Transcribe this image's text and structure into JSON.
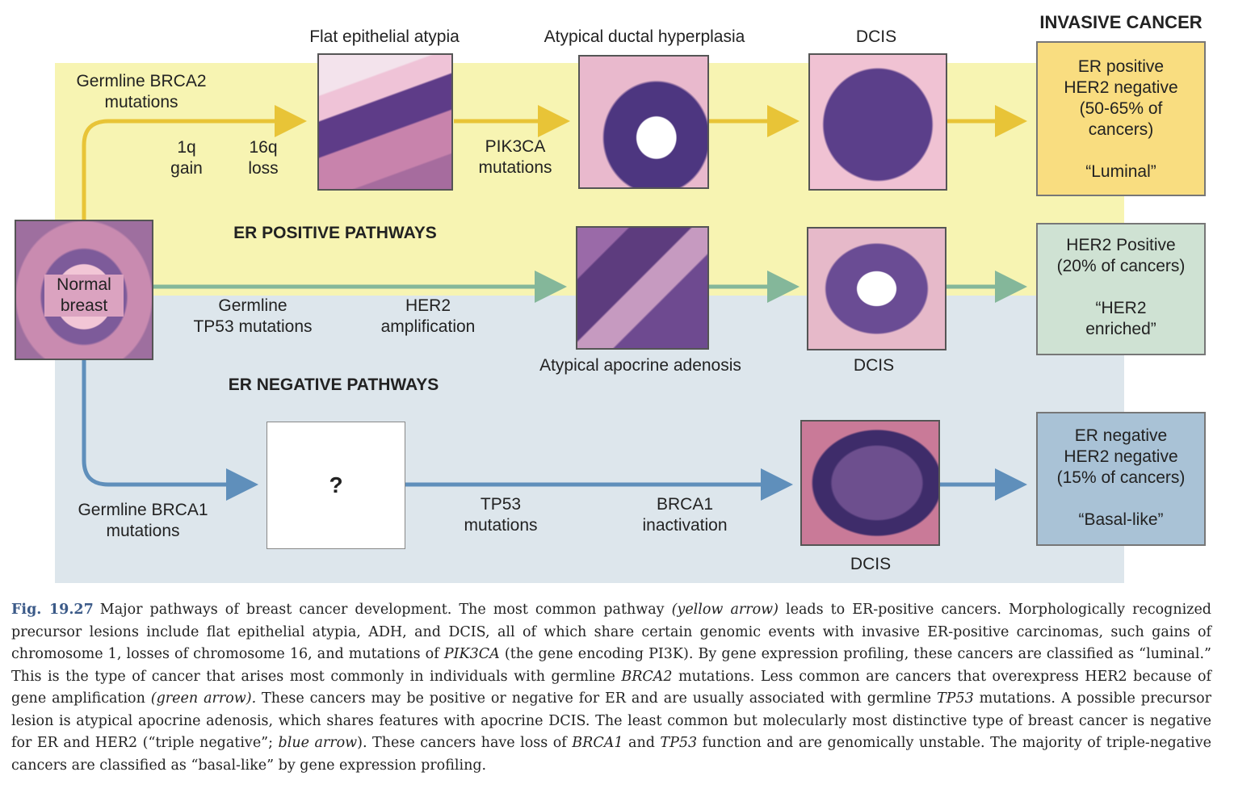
{
  "header": {
    "invasive_cancer": "INVASIVE CANCER"
  },
  "pathways": {
    "er_positive": "ER POSITIVE PATHWAYS",
    "er_negative": "ER NEGATIVE PATHWAYS"
  },
  "start": {
    "normal_breast": "Normal\nbreast"
  },
  "yellow_path": {
    "germline": "Germline BRCA2\nmutations",
    "gain": "1q\ngain",
    "loss": "16q\nloss",
    "lesion1": "Flat epithelial atypia",
    "pik3ca": "PIK3CA\nmutations",
    "lesion2": "Atypical ductal hyperplasia",
    "lesion3": "DCIS"
  },
  "green_path": {
    "germline": "Germline\nTP53 mutations",
    "her2": "HER2\namplification",
    "lesion1": "Atypical apocrine adenosis",
    "lesion2": "DCIS"
  },
  "blue_path": {
    "germline": "Germline BRCA1\nmutations",
    "unknown": "?",
    "tp53": "TP53\nmutations",
    "brca1": "BRCA1\ninactivation",
    "lesion": "DCIS"
  },
  "outcomes": {
    "luminal": {
      "lines": [
        "ER positive",
        "HER2 negative",
        "(50-65% of",
        "cancers)"
      ],
      "quote": "“Luminal”"
    },
    "her2": {
      "lines": [
        "HER2 Positive",
        "(20% of cancers)"
      ],
      "quote": "“HER2\nenriched”"
    },
    "basal": {
      "lines": [
        "ER negative",
        "HER2 negative",
        "(15% of cancers)"
      ],
      "quote": "“Basal-like”"
    }
  },
  "colors": {
    "yellow_band": "#f7f4b2",
    "blue_band": "#dde6ec",
    "yellow_arrow": "#e8c437",
    "green_arrow": "#84b79a",
    "blue_arrow": "#5f8fbb",
    "luminal_box": "#f9dd80",
    "her2_box": "#cfe2d3",
    "basal_box": "#a9c2d6",
    "tissue_pink": "#d98aa8",
    "tissue_purple": "#5b3a82"
  },
  "caption": {
    "figure": "Fig. 19.27",
    "s1": "Major pathways of breast cancer development. The most common pathway ",
    "i1": "(yellow arrow)",
    "s2": " leads to ER-positive cancers. Morphologically recognized precursor lesions include flat epithelial atypia, ADH, and DCIS, all of which share certain genomic events with invasive ER-positive carcinomas, such gains of chromosome 1, losses of chromosome 16, and mutations of ",
    "i2": "PIK3CA",
    "s3": " (the gene encoding PI3K). By gene expression profiling, these cancers are classified as “luminal.” This is the type of cancer that arises most commonly in individuals with germline ",
    "i3": "BRCA2",
    "s4": " mutations. Less common are cancers that overexpress HER2 because of gene amplification ",
    "i4": "(green arrow).",
    "s5": " These cancers may be positive or negative for ER and are usually associated with germline ",
    "i5": "TP53",
    "s6": " mutations. A possible precursor lesion is atypical apocrine adenosis, which shares features with apocrine DCIS. The least common but molecularly most distinctive type of breast cancer is negative for ER and HER2 (“triple negative”; ",
    "i6": "blue arrow",
    "s7": "). These cancers have loss of ",
    "i7": "BRCA1",
    "s8": " and ",
    "i8": "TP53",
    "s9": " function and are genomically unstable. The majority of triple-negative cancers are classified as “basal-like” by gene expression profiling."
  }
}
